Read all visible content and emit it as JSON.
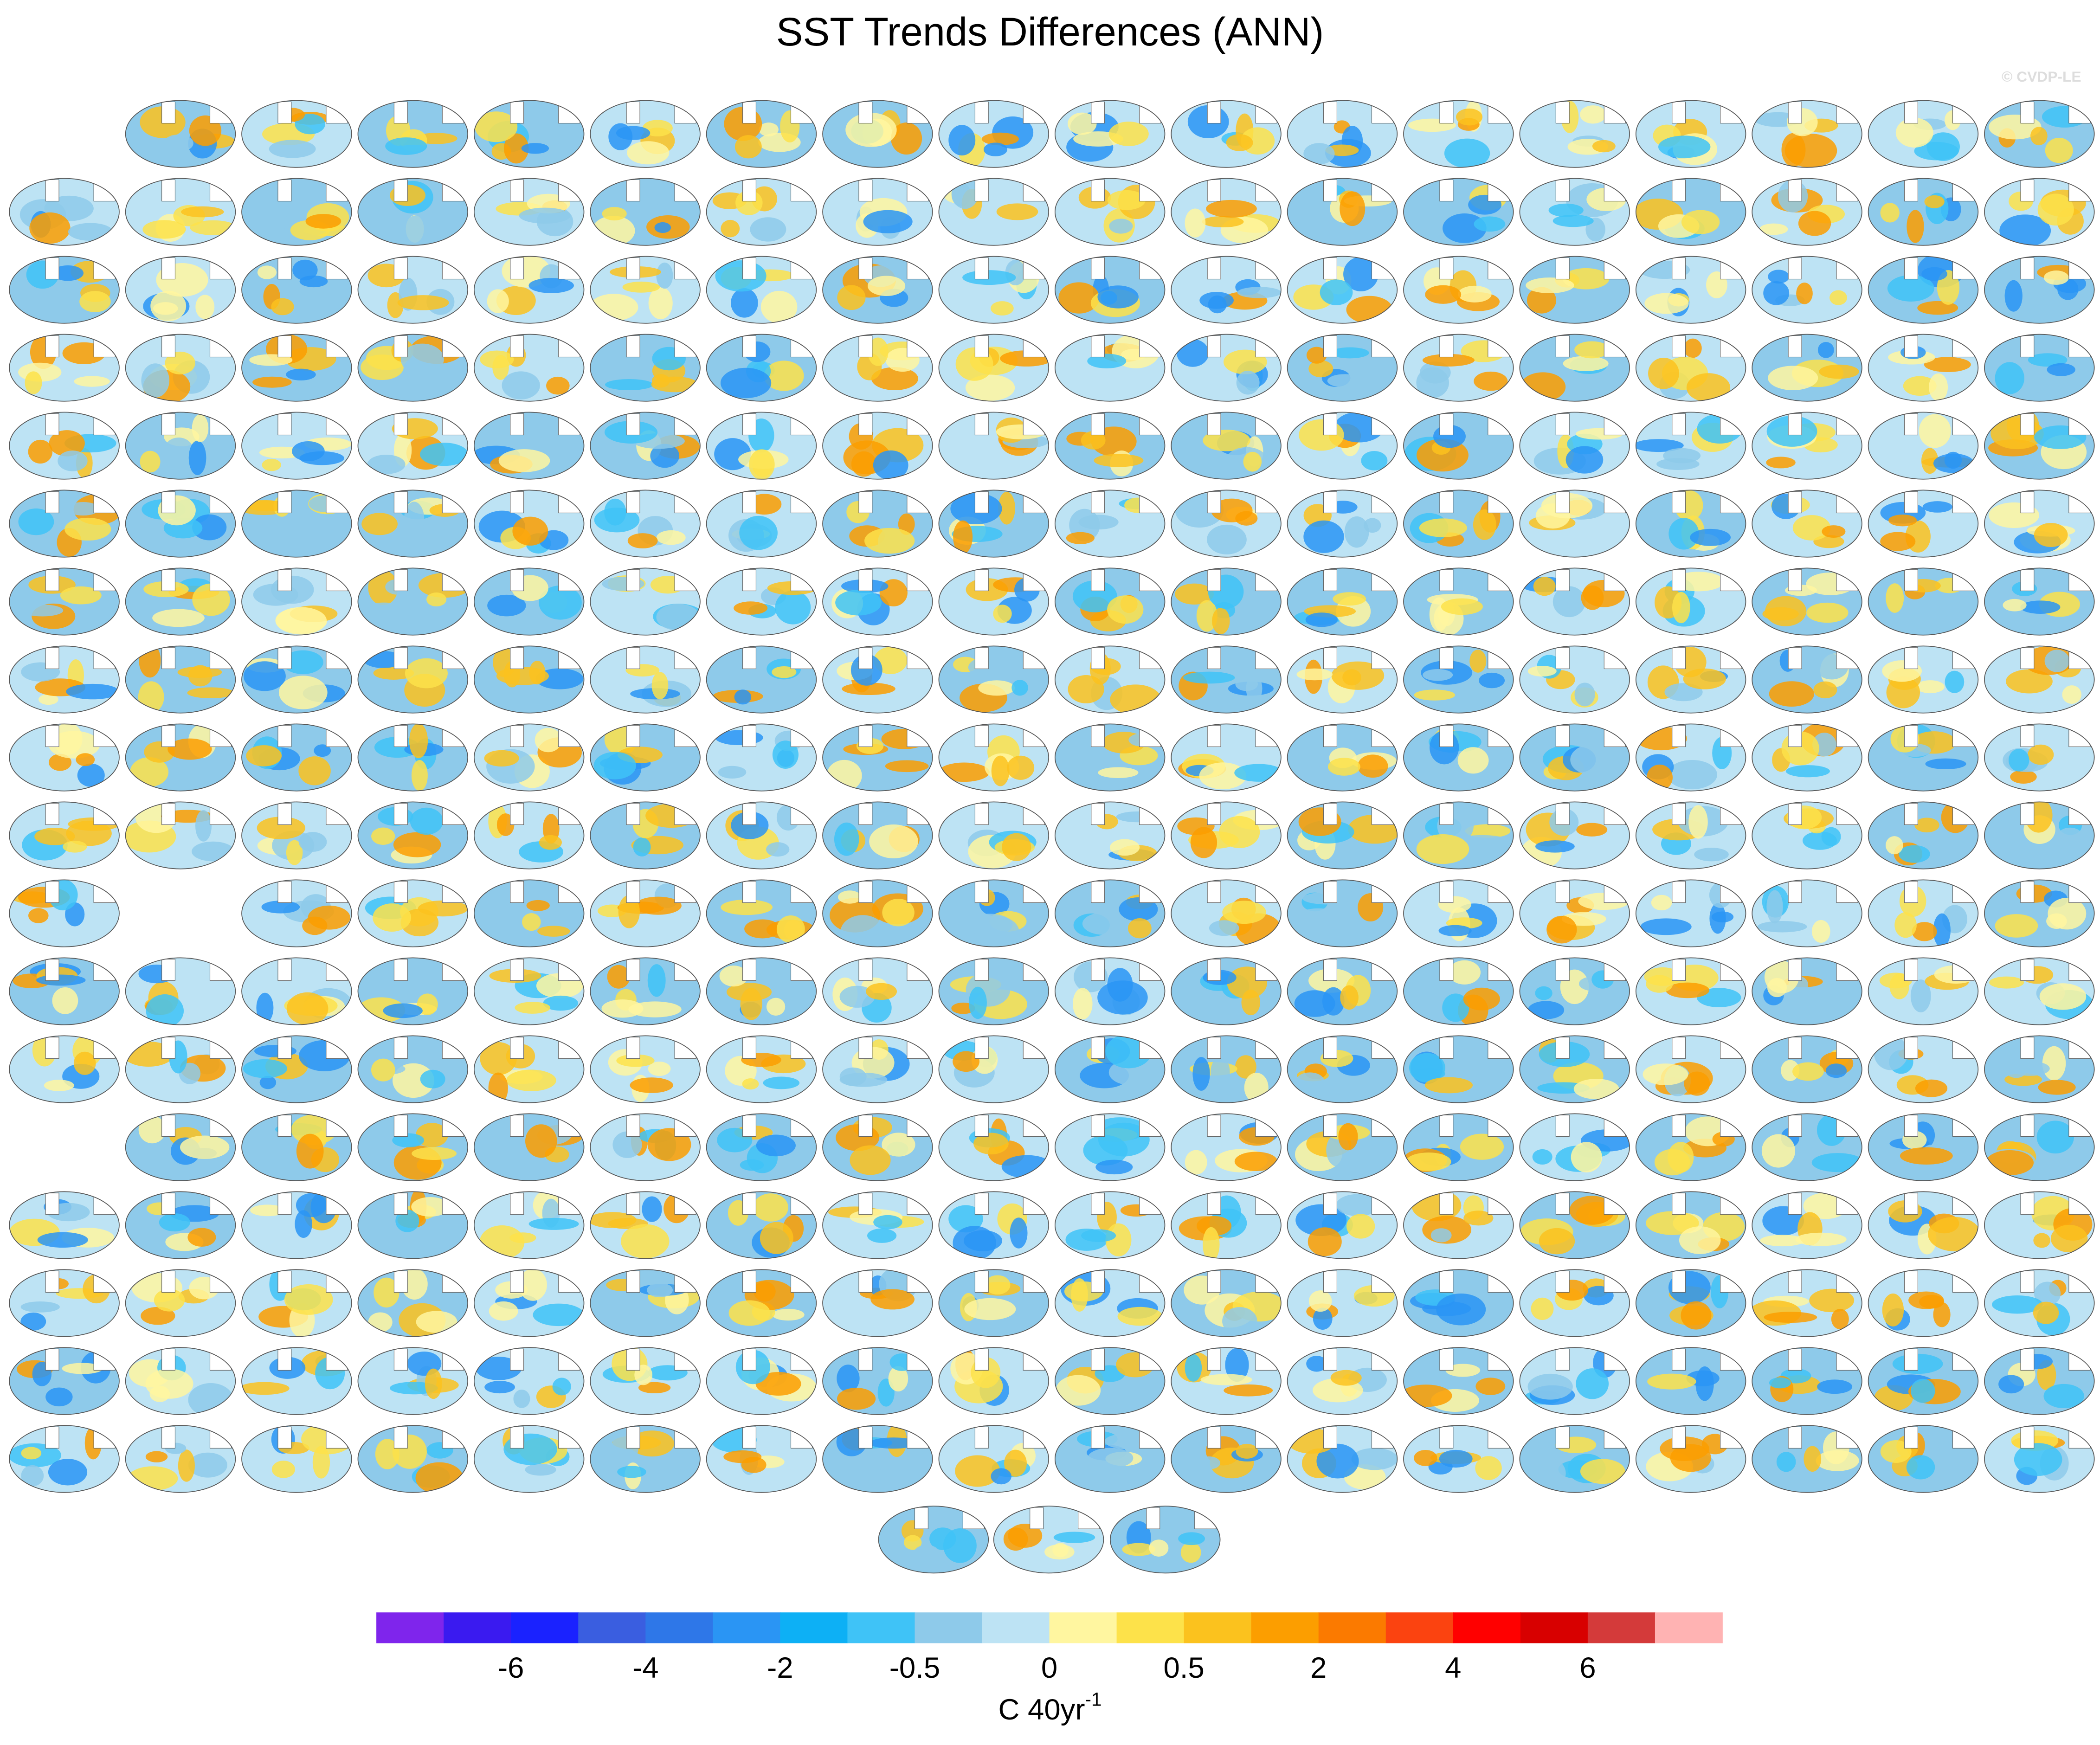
{
  "chart_data": {
    "type": "map-panels",
    "title": "SST Trends Differences (ANN)",
    "credit": "© CVDP-LE",
    "colorbar": {
      "colors": [
        "#7f25ec",
        "#3a1af0",
        "#1a22ff",
        "#3a5ee0",
        "#2e77e8",
        "#2a95f4",
        "#0db0f5",
        "#3fc3f7",
        "#8ecaea",
        "#bde3f4",
        "#fff6a0",
        "#fde24a",
        "#fbc21e",
        "#fc9e00",
        "#fb7a00",
        "#fb4310",
        "#ff0000",
        "#d80000",
        "#d43a3a",
        "#ffb3b3"
      ],
      "ticks": [
        -6,
        -4,
        -2,
        -0.5,
        0,
        0.5,
        2,
        4,
        6
      ],
      "units": "C 40yr",
      "units_superscript": "-1"
    }
  }
}
